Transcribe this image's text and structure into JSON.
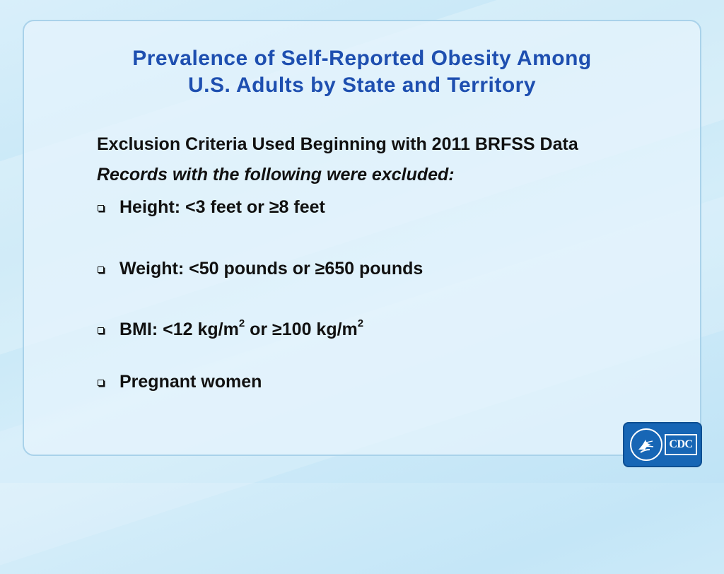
{
  "title": {
    "line1": "Prevalence of Self-Reported Obesity Among",
    "line2": "U.S. Adults by State and Territory"
  },
  "subheading": "Exclusion Criteria Used Beginning with 2011 BRFSS Data",
  "intro": "Records with the following were excluded:",
  "criteria": {
    "height": "Height:  <3 feet or ≥8 feet",
    "weight": "Weight:  <50 pounds or ≥650 pounds",
    "bmi": {
      "part1": "BMI: <12 kg/m",
      "sup1": "2",
      "part2": " or ≥100 kg/m",
      "sup2": "2"
    },
    "pregnant": "Pregnant women"
  },
  "logo": {
    "cdc_text": "CDC",
    "icon": "hhs-eagle-seal-icon"
  },
  "colors": {
    "title": "#1e4fb0",
    "logo_bg": "#1766b5"
  }
}
